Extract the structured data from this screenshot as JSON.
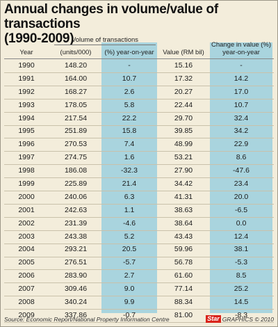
{
  "title_line1": "Annual changes in volume/value of transactions",
  "title_line2": "(1990-2009)",
  "headers": {
    "volume_group": "Volume of transactions",
    "year": "Year",
    "units": "(units/000)",
    "pct": "(%) year-on-year",
    "value": "Value (RM bil)",
    "change_line1": "Change in value (%)",
    "change_line2": "year-on-year"
  },
  "footer": {
    "source": "Source: Economic Report/National Property Information Centre",
    "logo": "Star",
    "credit": "GRAPHICS © 2010"
  },
  "colors": {
    "band": "#a9d4de",
    "background": "#f3eddb"
  },
  "chart_data": {
    "type": "table",
    "columns": [
      "Year",
      "Volume of transactions (units/000)",
      "Volume of transactions (%) year-on-year",
      "Value (RM bil)",
      "Change in value (%) year-on-year"
    ],
    "rows": [
      [
        "1990",
        "148.20",
        "-",
        "15.16",
        "-"
      ],
      [
        "1991",
        "164.00",
        "10.7",
        "17.32",
        "14.2"
      ],
      [
        "1992",
        "168.27",
        "2.6",
        "20.27",
        "17.0"
      ],
      [
        "1993",
        "178.05",
        "5.8",
        "22.44",
        "10.7"
      ],
      [
        "1994",
        "217.54",
        "22.2",
        "29.70",
        "32.4"
      ],
      [
        "1995",
        "251.89",
        "15.8",
        "39.85",
        "34.2"
      ],
      [
        "1996",
        "270.53",
        "7.4",
        "48.99",
        "22.9"
      ],
      [
        "1997",
        "274.75",
        "1.6",
        "53.21",
        "8.6"
      ],
      [
        "1998",
        "186.08",
        "-32.3",
        "27.90",
        "-47.6"
      ],
      [
        "1999",
        "225.89",
        "21.4",
        "34.42",
        "23.4"
      ],
      [
        "2000",
        "240.06",
        "6.3",
        "41.31",
        "20.0"
      ],
      [
        "2001",
        "242.63",
        "1.1",
        "38.63",
        "-6.5"
      ],
      [
        "2002",
        "231.39",
        "-4.6",
        "38.64",
        "0.0"
      ],
      [
        "2003",
        "243.38",
        "5.2",
        "43.43",
        "12.4"
      ],
      [
        "2004",
        "293.21",
        "20.5",
        "59.96",
        "38.1"
      ],
      [
        "2005",
        "276.51",
        "-5.7",
        "56.78",
        "-5.3"
      ],
      [
        "2006",
        "283.90",
        "2.7",
        "61.60",
        "8.5"
      ],
      [
        "2007",
        "309.46",
        "9.0",
        "77.14",
        "25.2"
      ],
      [
        "2008",
        "340.24",
        "9.9",
        "88.34",
        "14.5"
      ],
      [
        "2009",
        "337.86",
        "-0.7",
        "81.00",
        "-8.3"
      ]
    ]
  }
}
